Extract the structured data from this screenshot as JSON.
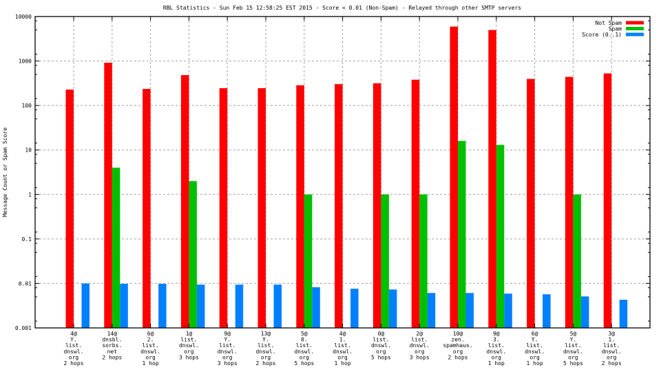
{
  "chart_data": {
    "type": "bar",
    "title": "RBL Statistics - Sun Feb 15 12:58:25 EST 2015 - Score < 0.01 (Non-Spam) - Relayed through other SMTP servers",
    "xlabel": "",
    "ylabel": "Message Count or Spam Score",
    "yscale": "log",
    "ylim": [
      0.001,
      10000
    ],
    "yticks": [
      "0.001",
      "0.01",
      "0.1",
      "1",
      "10",
      "100",
      "1000",
      "10000"
    ],
    "grid": true,
    "legend_position": "top-right",
    "categories": [
      [
        "4@",
        "Y.",
        "list.",
        "dnswl.",
        "org",
        "2 hops"
      ],
      [
        "14@",
        "dnsbl.",
        "sorbs.",
        "net",
        "2 hops"
      ],
      [
        "6@",
        "2.",
        "list.",
        "dnswl.",
        "org",
        "1 hop"
      ],
      [
        "1@",
        "list.",
        "dnswl.",
        "org",
        "3 hops"
      ],
      [
        "9@",
        "Y.",
        "list.",
        "dnswl.",
        "org",
        "3 hops"
      ],
      [
        "13@",
        "Y.",
        "list.",
        "dnswl.",
        "org",
        "2 hops"
      ],
      [
        "5@",
        "0.",
        "list.",
        "dnswl.",
        "org",
        "5 hops"
      ],
      [
        "4@",
        "1.",
        "list.",
        "dnswl.",
        "org",
        "1 hop"
      ],
      [
        "0@",
        "list.",
        "dnswl.",
        "org",
        "5 hops"
      ],
      [
        "2@",
        "list.",
        "dnswl.",
        "org",
        "3 hops"
      ],
      [
        "10@",
        "zen.",
        "spamhaus.",
        "org",
        "2 hops"
      ],
      [
        "9@",
        "3.",
        "list.",
        "dnswl.",
        "org",
        "1 hop"
      ],
      [
        "6@",
        "Y.",
        "list.",
        "dnswl.",
        "org",
        "1 hop"
      ],
      [
        "5@",
        "Y.",
        "list.",
        "dnswl.",
        "org",
        "5 hops"
      ],
      [
        "3@",
        "1.",
        "list.",
        "dnswl.",
        "org",
        "2 hops"
      ]
    ],
    "series": [
      {
        "name": "Not Spam",
        "color": "#ff0000",
        "values": [
          228,
          914,
          236,
          482,
          245,
          245,
          285,
          302,
          316,
          380,
          5940,
          4980,
          396,
          440,
          526
        ]
      },
      {
        "name": "Spam",
        "color": "#00c000",
        "values": [
          0,
          4,
          0,
          2,
          0,
          0,
          1,
          0,
          1,
          1,
          16,
          13,
          0,
          1,
          0
        ]
      },
      {
        "name": "Score (0..1)",
        "color": "#0080ff",
        "values": [
          0.01,
          0.0098,
          0.0098,
          0.0094,
          0.0094,
          0.0094,
          0.0082,
          0.0076,
          0.0073,
          0.0061,
          0.0061,
          0.0059,
          0.0057,
          0.0051,
          0.0043
        ]
      }
    ]
  }
}
